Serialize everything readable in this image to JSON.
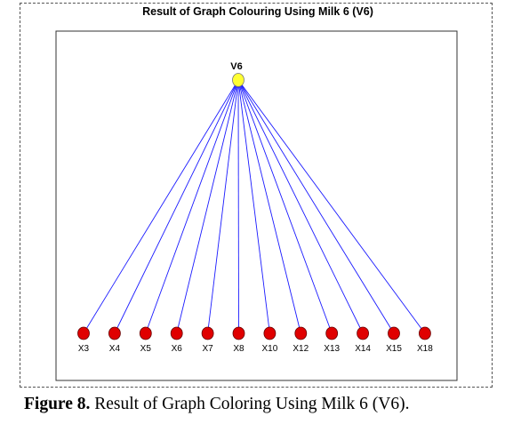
{
  "figure": {
    "title": "Result of Graph Colouring Using Milk 6 (V6)",
    "root": {
      "label": "V6"
    },
    "leaves": [
      {
        "label": "X3"
      },
      {
        "label": "X4"
      },
      {
        "label": "X5"
      },
      {
        "label": "X6"
      },
      {
        "label": "X7"
      },
      {
        "label": "X8"
      },
      {
        "label": "X10"
      },
      {
        "label": "X12"
      },
      {
        "label": "X13"
      },
      {
        "label": "X14"
      },
      {
        "label": "X15"
      },
      {
        "label": "X18"
      }
    ]
  },
  "caption": {
    "label": "Figure 8.",
    "text": "Result of Graph Coloring Using Milk 6 (V6)."
  }
}
